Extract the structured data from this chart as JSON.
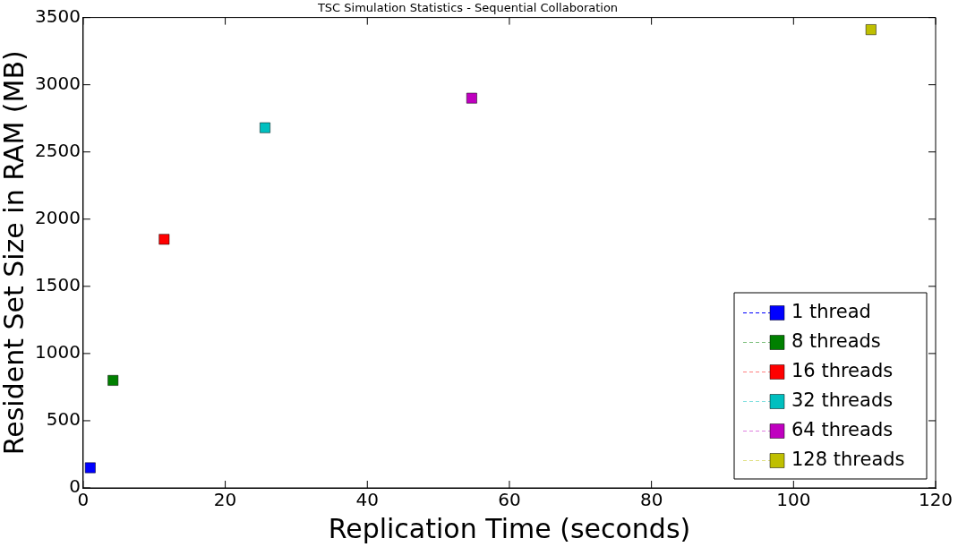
{
  "chart_data": {
    "type": "scatter",
    "title": "TSC Simulation Statistics - Sequential Collaboration",
    "xlabel": "Replication Time (seconds)",
    "ylabel": "Resident Set Size in RAM (MB)",
    "xlim": [
      0,
      120
    ],
    "xticks": [
      0,
      20,
      40,
      60,
      80,
      100,
      120
    ],
    "ylim": [
      0,
      3500
    ],
    "yticks": [
      0,
      500,
      1000,
      1500,
      2000,
      2500,
      3000,
      3500
    ],
    "grid": false,
    "legend": "bottom right",
    "marker": "square",
    "line_style": "dashed",
    "series": [
      {
        "name": "1 thread",
        "color": "#0000ff",
        "x": [
          1.0
        ],
        "values": [
          150
        ]
      },
      {
        "name": "8 threads",
        "color": "#008000",
        "x": [
          4.2
        ],
        "values": [
          800
        ]
      },
      {
        "name": "16 threads",
        "color": "#ff0000",
        "x": [
          11.4
        ],
        "values": [
          1850
        ]
      },
      {
        "name": "32 threads",
        "color": "#00bfbf",
        "x": [
          25.6
        ],
        "values": [
          2680
        ]
      },
      {
        "name": "64 threads",
        "color": "#bf00bf",
        "x": [
          54.7
        ],
        "values": [
          2900
        ]
      },
      {
        "name": "128 threads",
        "color": "#bfbf00",
        "x": [
          110.9
        ],
        "values": [
          3410
        ]
      }
    ]
  }
}
